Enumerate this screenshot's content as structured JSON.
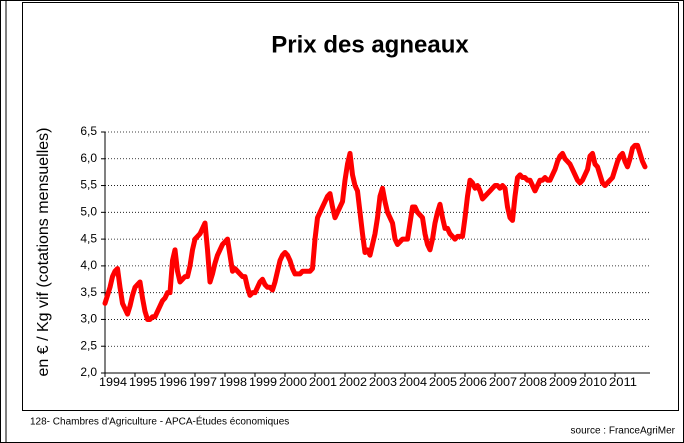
{
  "chart_data": {
    "type": "line",
    "title": "Prix des agneaux",
    "y_label": "en € / Kg vif (cotations mensuelles)",
    "footer_left": "128- Chambres d'Agriculture - APCA-Études économiques",
    "footer_right": "source :  FranceAgriMer",
    "categories": [
      "1994",
      null,
      null,
      null,
      null,
      null,
      null,
      null,
      null,
      null,
      null,
      null,
      "1995",
      null,
      null,
      null,
      null,
      null,
      null,
      null,
      null,
      null,
      null,
      null,
      "1996",
      null,
      null,
      null,
      null,
      null,
      null,
      null,
      null,
      null,
      null,
      null,
      "1997",
      null,
      null,
      null,
      null,
      null,
      null,
      null,
      null,
      null,
      null,
      null,
      "1998",
      null,
      null,
      null,
      null,
      null,
      null,
      null,
      null,
      null,
      null,
      null,
      "1999",
      null,
      null,
      null,
      null,
      null,
      null,
      null,
      null,
      null,
      null,
      null,
      "2000",
      null,
      null,
      null,
      null,
      null,
      null,
      null,
      null,
      null,
      null,
      null,
      "2001",
      null,
      null,
      null,
      null,
      null,
      null,
      null,
      null,
      null,
      null,
      null,
      "2002",
      null,
      null,
      null,
      null,
      null,
      null,
      null,
      null,
      null,
      null,
      null,
      "2003",
      null,
      null,
      null,
      null,
      null,
      null,
      null,
      null,
      null,
      null,
      null,
      "2004",
      null,
      null,
      null,
      null,
      null,
      null,
      null,
      null,
      null,
      null,
      null,
      "2005",
      null,
      null,
      null,
      null,
      null,
      null,
      null,
      null,
      null,
      null,
      null,
      "2006",
      null,
      null,
      null,
      null,
      null,
      null,
      null,
      null,
      null,
      null,
      null,
      "2007",
      null,
      null,
      null,
      null,
      null,
      null,
      null,
      null,
      null,
      null,
      null,
      "2008",
      null,
      null,
      null,
      null,
      null,
      null,
      null,
      null,
      null,
      null,
      null,
      "2009",
      null,
      null,
      null,
      null,
      null,
      null,
      null,
      null,
      null,
      null,
      null,
      "2010",
      null,
      null,
      null,
      null,
      null,
      null,
      null,
      null,
      null,
      null,
      null,
      "2011",
      null,
      null,
      null,
      null,
      null,
      null,
      null,
      null,
      null,
      null,
      null,
      null
    ],
    "values": [
      3.3,
      3.45,
      3.6,
      3.8,
      3.9,
      3.95,
      3.6,
      3.3,
      3.2,
      3.1,
      3.25,
      3.45,
      3.6,
      3.65,
      3.7,
      3.4,
      3.15,
      3.0,
      3.0,
      3.05,
      3.05,
      3.15,
      3.25,
      3.35,
      3.4,
      3.5,
      3.5,
      4.1,
      4.3,
      3.9,
      3.7,
      3.75,
      3.8,
      3.8,
      4.0,
      4.3,
      4.5,
      4.55,
      4.6,
      4.7,
      4.8,
      4.3,
      3.7,
      3.85,
      4.05,
      4.2,
      4.3,
      4.4,
      4.45,
      4.5,
      4.2,
      3.9,
      3.95,
      3.9,
      3.85,
      3.8,
      3.8,
      3.6,
      3.45,
      3.5,
      3.5,
      3.6,
      3.7,
      3.75,
      3.65,
      3.6,
      3.6,
      3.55,
      3.7,
      3.9,
      4.1,
      4.2,
      4.25,
      4.2,
      4.1,
      3.95,
      3.85,
      3.85,
      3.85,
      3.9,
      3.9,
      3.9,
      3.9,
      3.95,
      4.5,
      4.9,
      5.0,
      5.1,
      5.2,
      5.3,
      5.35,
      5.1,
      4.9,
      5.0,
      5.1,
      5.2,
      5.6,
      5.9,
      6.1,
      5.7,
      5.5,
      5.4,
      5.0,
      4.6,
      4.25,
      4.3,
      4.2,
      4.4,
      4.6,
      4.9,
      5.3,
      5.45,
      5.2,
      5.0,
      4.9,
      4.8,
      4.5,
      4.4,
      4.45,
      4.5,
      4.5,
      4.5,
      4.8,
      5.1,
      5.1,
      5.0,
      4.95,
      4.9,
      4.6,
      4.4,
      4.3,
      4.5,
      4.8,
      5.0,
      5.15,
      4.9,
      4.7,
      4.7,
      4.6,
      4.55,
      4.5,
      4.55,
      4.55,
      4.55,
      4.9,
      5.3,
      5.6,
      5.55,
      5.45,
      5.5,
      5.4,
      5.25,
      5.3,
      5.35,
      5.4,
      5.45,
      5.5,
      5.5,
      5.45,
      5.5,
      5.45,
      5.1,
      4.9,
      4.85,
      5.3,
      5.65,
      5.7,
      5.65,
      5.65,
      5.6,
      5.6,
      5.5,
      5.4,
      5.5,
      5.6,
      5.6,
      5.65,
      5.6,
      5.6,
      5.7,
      5.8,
      5.95,
      6.05,
      6.1,
      6.0,
      5.95,
      5.9,
      5.8,
      5.7,
      5.6,
      5.55,
      5.6,
      5.7,
      5.8,
      6.05,
      6.1,
      5.9,
      5.85,
      5.7,
      5.55,
      5.5,
      5.55,
      5.6,
      5.65,
      5.8,
      5.95,
      6.05,
      6.1,
      5.95,
      5.85,
      6.0,
      6.2,
      6.25,
      6.25,
      6.1,
      5.95,
      5.85
    ],
    "color": "#ff0000",
    "ylim": [
      2.0,
      6.5
    ],
    "yticks": [
      {
        "value": 2.0,
        "label": "2,0"
      },
      {
        "value": 2.5,
        "label": "2,5"
      },
      {
        "value": 3.0,
        "label": "3,0"
      },
      {
        "value": 3.5,
        "label": "3,5"
      },
      {
        "value": 4.0,
        "label": "4,0"
      },
      {
        "value": 4.5,
        "label": "4,5"
      },
      {
        "value": 5.0,
        "label": "5,0"
      },
      {
        "value": 5.5,
        "label": "5,5"
      },
      {
        "value": 6.0,
        "label": "6,0"
      },
      {
        "value": 6.5,
        "label": "6,5"
      }
    ],
    "grid": true
  }
}
